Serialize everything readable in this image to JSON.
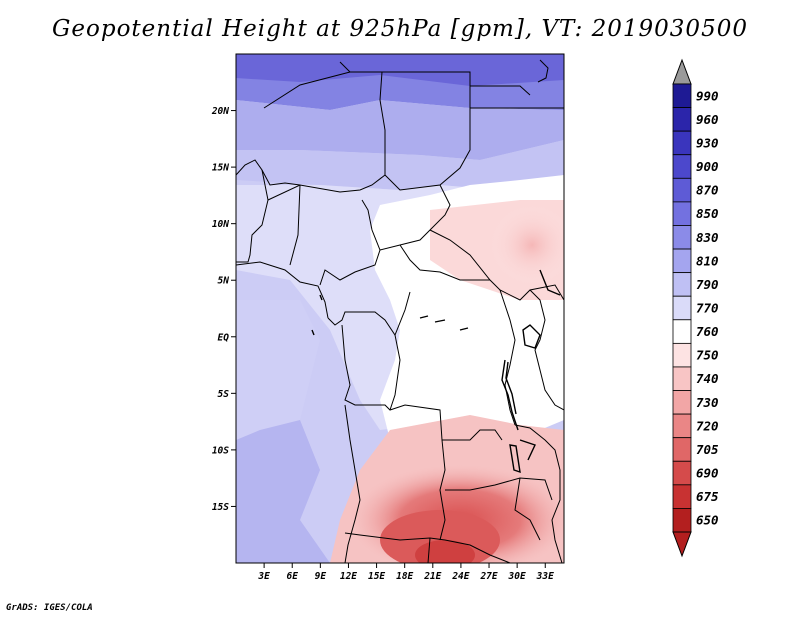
{
  "title": "Geopotential Height at 925hPa [gpm], VT: 2019030500",
  "credit": "GrADS: IGES/COLA",
  "map": {
    "lat_labels": [
      "20N",
      "15N",
      "10N",
      "5N",
      "EQ",
      "5S",
      "10S",
      "15S"
    ],
    "lat_values": [
      20,
      15,
      10,
      5,
      0,
      -5,
      -10,
      -15
    ],
    "lon_labels": [
      "3E",
      "6E",
      "9E",
      "12E",
      "15E",
      "18E",
      "21E",
      "24E",
      "27E",
      "30E",
      "33E"
    ],
    "lon_values": [
      3,
      6,
      9,
      12,
      15,
      18,
      21,
      24,
      27,
      30,
      33
    ],
    "extent": {
      "lon_min": 0,
      "lon_max": 35,
      "lat_min": -20,
      "lat_max": 25
    }
  },
  "colorbar": {
    "levels": [
      "990",
      "960",
      "930",
      "900",
      "870",
      "850",
      "830",
      "810",
      "790",
      "770",
      "760",
      "750",
      "740",
      "730",
      "720",
      "705",
      "690",
      "675",
      "650"
    ],
    "colors": [
      "#1e1a94",
      "#2b25aa",
      "#3a35bd",
      "#4c48cc",
      "#5e5bd6",
      "#7371e0",
      "#8b8be8",
      "#a4a5ef",
      "#bfc0f4",
      "#dadbf9",
      "#ffffff",
      "#fde3e3",
      "#f8c5c5",
      "#f2a6a6",
      "#ea8686",
      "#e06767",
      "#d54b4b",
      "#c83232",
      "#b31f1f"
    ],
    "top_arrow_color": "#9a9a9a"
  }
}
